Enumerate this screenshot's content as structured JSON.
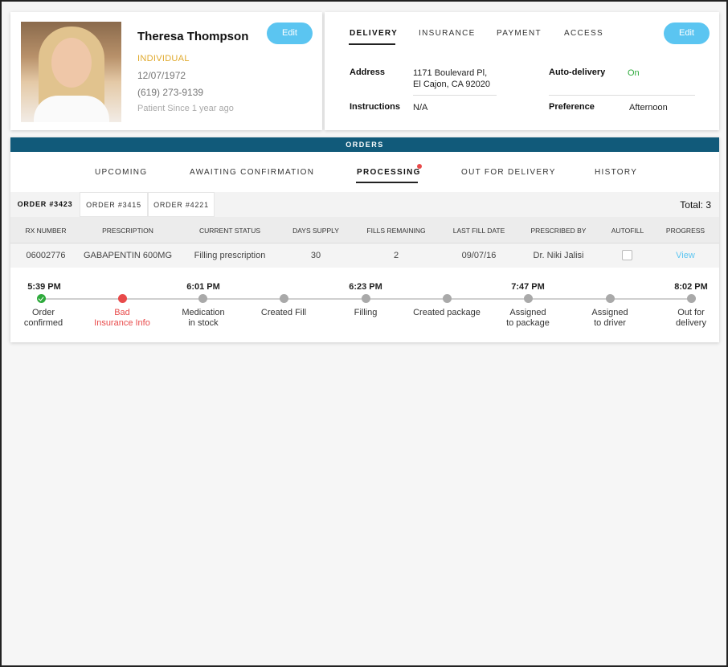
{
  "patient": {
    "name": "Theresa Thompson",
    "type": "INDIVIDUAL",
    "dob": "12/07/1972",
    "phone": "(619) 273-9139",
    "since": "Patient Since 1 year ago",
    "edit_label": "Edit"
  },
  "delivery": {
    "tabs": [
      "DELIVERY",
      "INSURANCE",
      "PAYMENT",
      "ACCESS"
    ],
    "edit_label": "Edit",
    "address_label": "Address",
    "address_line1": "1171 Boulevard Pl,",
    "address_line2": "El Cajon, CA 92020",
    "instructions_label": "Instructions",
    "instructions_value": "N/A",
    "auto_label": "Auto-delivery",
    "auto_value": "On",
    "preference_label": "Preference",
    "preference_value": "Afternoon"
  },
  "orders": {
    "title": "ORDERS",
    "tabs": [
      "UPCOMING",
      "AWAITING CONFIRMATION",
      "PROCESSING",
      "OUT FOR DELIVERY",
      "HISTORY"
    ],
    "order_tabs": [
      "ORDER #3423",
      "ORDER #3415",
      "ORDER #4221"
    ],
    "total": "Total: 3",
    "columns": [
      "RX NUMBER",
      "PRESCRIPTION",
      "CURRENT STATUS",
      "DAYS SUPPLY",
      "FILLS REMAINING",
      "LAST FILL DATE",
      "PRESCRIBED BY",
      "AUTOFILL",
      "PROGRESS"
    ],
    "row": {
      "rx": "06002776",
      "prescription": "GABAPENTIN 600MG",
      "status": "Filling prescription",
      "days": "30",
      "fills": "2",
      "last_fill": "09/07/16",
      "prescriber": "Dr. Niki Jalisi",
      "progress_link": "View"
    },
    "steps": [
      {
        "time": "5:39 PM",
        "label": "Order\nconfirmed"
      },
      {
        "time": "",
        "label": "Bad\nInsurance Info"
      },
      {
        "time": "6:01 PM",
        "label": "Medication\nin stock"
      },
      {
        "time": "",
        "label": "Created Fill"
      },
      {
        "time": "6:23 PM",
        "label": "Filling"
      },
      {
        "time": "",
        "label": "Created package"
      },
      {
        "time": "7:47 PM",
        "label": "Assigned\nto package"
      },
      {
        "time": "",
        "label": "Assigned\nto driver"
      },
      {
        "time": "8:02 PM",
        "label": "Out for\ndelivery"
      }
    ]
  },
  "colors": {
    "accent": "#5bc5f1",
    "header_bar": "#115a7a",
    "success": "#2eaa3c",
    "error": "#e84a4a",
    "warning": "#e0a92c"
  }
}
